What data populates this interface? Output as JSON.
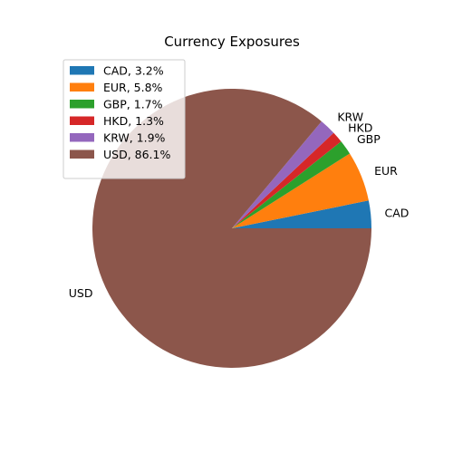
{
  "chart_data": {
    "type": "pie",
    "title": "Currency Exposures",
    "categories": [
      "CAD",
      "EUR",
      "GBP",
      "HKD",
      "KRW",
      "USD"
    ],
    "values": [
      3.2,
      5.8,
      1.7,
      1.3,
      1.9,
      86.1
    ],
    "unit": "%",
    "legend_labels": [
      "CAD, 3.2%",
      "EUR, 5.8%",
      "GBP, 1.7%",
      "HKD, 1.3%",
      "KRW, 1.9%",
      "USD, 86.1%"
    ],
    "colors": [
      "#1f77b4",
      "#ff7f0e",
      "#2ca02c",
      "#d62728",
      "#9467bd",
      "#8c564b"
    ],
    "start_angle_deg": 0,
    "direction": "counterclockwise",
    "legend_position": "upper-left"
  }
}
